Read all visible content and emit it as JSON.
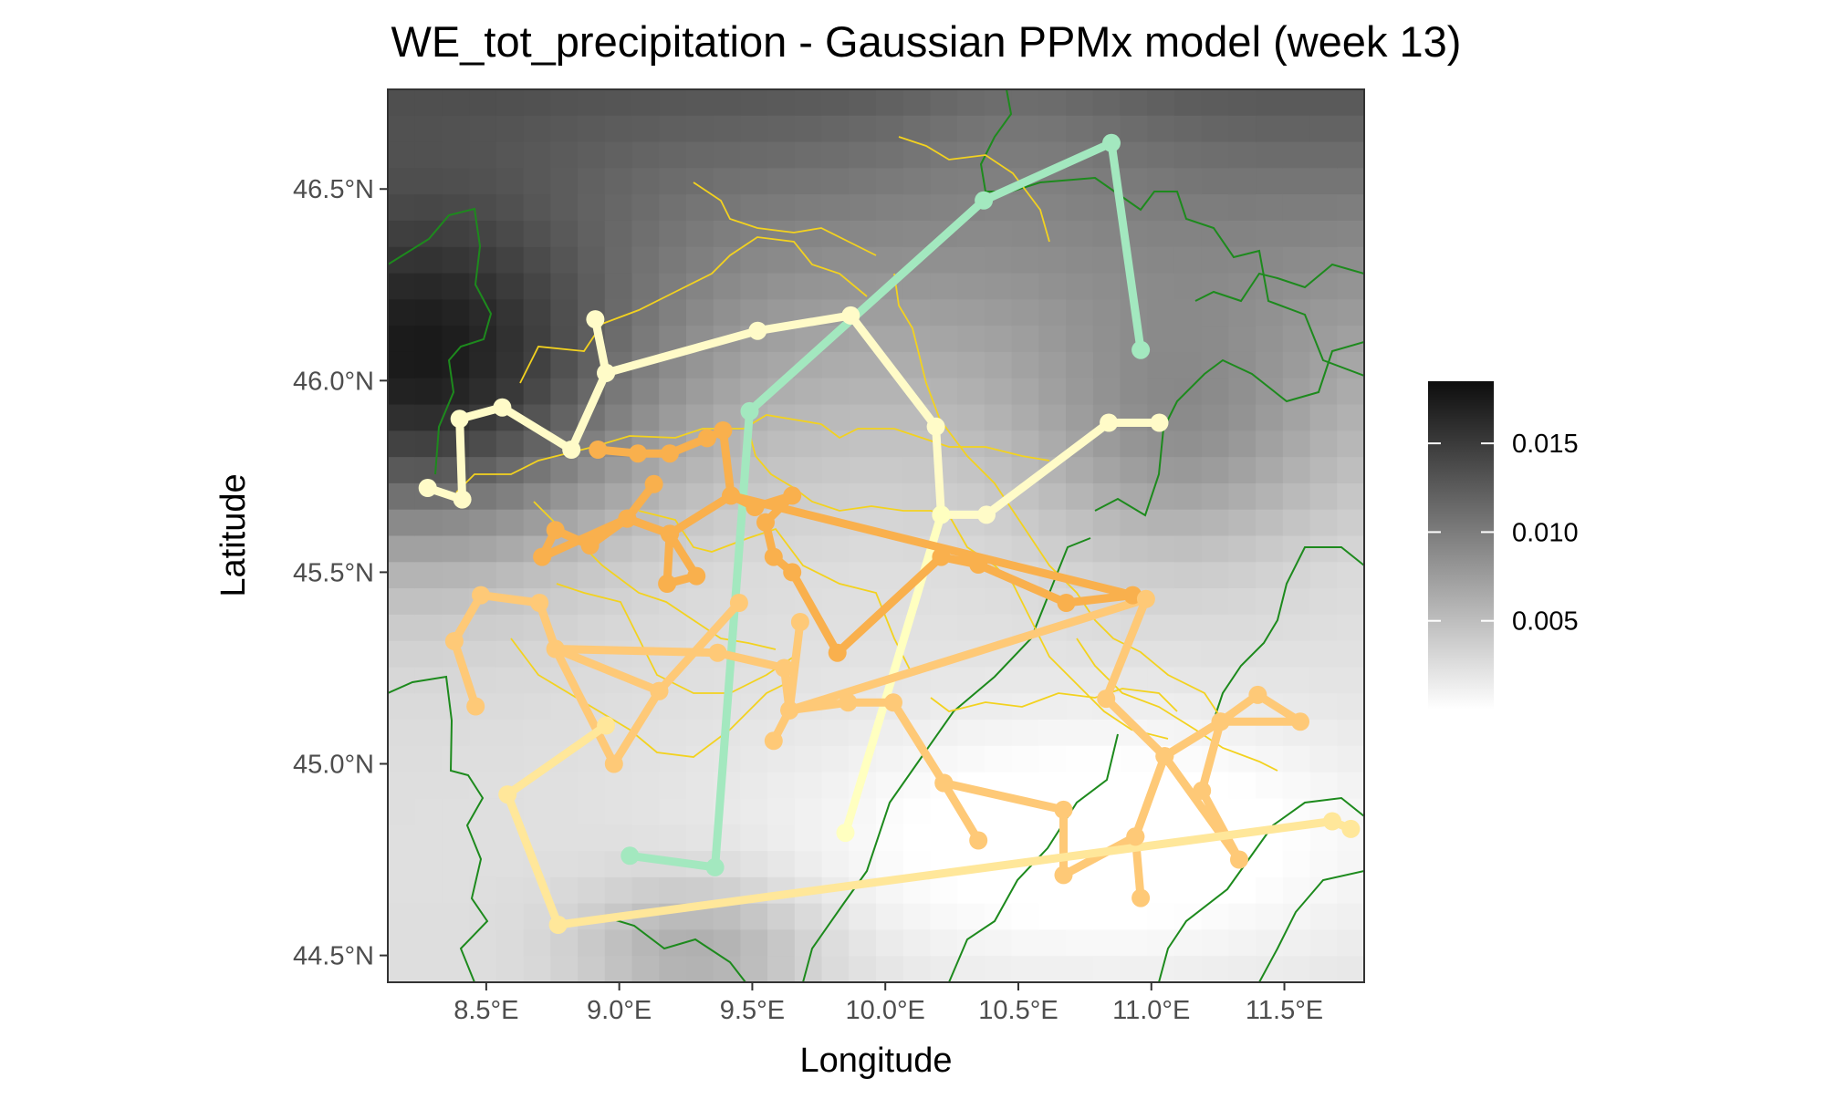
{
  "title": "WE_tot_precipitation - Gaussian PPMx model (week 13)",
  "axes": {
    "x_label": "Longitude",
    "y_label": "Latitude",
    "x_ticks": [
      {
        "value": 8.5,
        "label": "8.5°E"
      },
      {
        "value": 9.0,
        "label": "9.0°E"
      },
      {
        "value": 9.5,
        "label": "9.5°E"
      },
      {
        "value": 10.0,
        "label": "10.0°E"
      },
      {
        "value": 10.5,
        "label": "10.5°E"
      },
      {
        "value": 11.0,
        "label": "11.0°E"
      },
      {
        "value": 11.5,
        "label": "11.5°E"
      }
    ],
    "y_ticks": [
      {
        "value": 44.5,
        "label": "44.5°N"
      },
      {
        "value": 45.0,
        "label": "45.0°N"
      },
      {
        "value": 45.5,
        "label": "45.5°N"
      },
      {
        "value": 46.0,
        "label": "46.0°N"
      },
      {
        "value": 46.5,
        "label": "46.5°N"
      }
    ]
  },
  "legend": {
    "placement": "right",
    "min": 0.0,
    "max": 0.0185,
    "ticks": [
      {
        "value": 0.005,
        "label": "0.005"
      },
      {
        "value": 0.01,
        "label": "0.010"
      },
      {
        "value": 0.015,
        "label": "0.015"
      }
    ]
  },
  "chart_data": {
    "type": "map",
    "xlim": [
      8.13,
      11.8
    ],
    "ylim": [
      44.43,
      46.76
    ],
    "fill_scale": {
      "low": "#ffffff",
      "high": "#0d0d0d"
    },
    "clusters": [
      {
        "color": "#a3e8bf",
        "points": [
          [
            10.96,
            46.08
          ],
          [
            10.85,
            46.62
          ],
          [
            10.37,
            46.47
          ],
          [
            9.49,
            45.92
          ],
          [
            9.36,
            44.73
          ],
          [
            9.04,
            44.76
          ]
        ]
      },
      {
        "color": "#fffbc8",
        "points": [
          [
            8.28,
            45.72
          ],
          [
            8.41,
            45.69
          ],
          [
            8.4,
            45.9
          ],
          [
            8.56,
            45.93
          ],
          [
            8.82,
            45.82
          ],
          [
            8.95,
            46.02
          ],
          [
            8.91,
            46.16
          ],
          [
            8.95,
            46.02
          ],
          [
            9.52,
            46.13
          ],
          [
            9.87,
            46.17
          ],
          [
            10.19,
            45.88
          ],
          [
            10.21,
            45.65
          ],
          [
            10.38,
            45.65
          ],
          [
            10.84,
            45.89
          ],
          [
            11.03,
            45.89
          ]
        ]
      },
      {
        "color": "#ffffc0",
        "points": [
          [
            9.85,
            44.82
          ],
          [
            10.21,
            45.65
          ]
        ]
      },
      {
        "color": "#f9b04d",
        "points": [
          [
            8.92,
            45.82
          ],
          [
            9.07,
            45.81
          ],
          [
            9.19,
            45.81
          ],
          [
            9.33,
            45.85
          ],
          [
            9.39,
            45.87
          ],
          [
            9.42,
            45.7
          ],
          [
            9.51,
            45.67
          ],
          [
            9.65,
            45.7
          ],
          [
            9.55,
            45.63
          ],
          [
            9.58,
            45.54
          ],
          [
            9.65,
            45.5
          ],
          [
            9.82,
            45.29
          ],
          [
            10.21,
            45.54
          ],
          [
            10.35,
            45.52
          ],
          [
            10.68,
            45.42
          ],
          [
            10.93,
            45.44
          ],
          [
            9.42,
            45.7
          ],
          [
            9.19,
            45.6
          ],
          [
            9.18,
            45.47
          ],
          [
            9.29,
            45.49
          ],
          [
            9.19,
            45.6
          ],
          [
            9.03,
            45.64
          ],
          [
            8.89,
            45.57
          ],
          [
            8.76,
            45.61
          ],
          [
            8.71,
            45.54
          ],
          [
            9.03,
            45.64
          ],
          [
            9.13,
            45.73
          ]
        ]
      },
      {
        "color": "#fec977",
        "points": [
          [
            8.46,
            45.15
          ],
          [
            8.38,
            45.32
          ],
          [
            8.48,
            45.44
          ],
          [
            8.7,
            45.42
          ],
          [
            8.76,
            45.3
          ],
          [
            9.15,
            45.19
          ],
          [
            9.45,
            45.42
          ],
          [
            9.15,
            45.19
          ],
          [
            8.98,
            45.0
          ],
          [
            8.76,
            45.3
          ],
          [
            9.37,
            45.29
          ],
          [
            9.62,
            45.25
          ],
          [
            9.64,
            45.14
          ],
          [
            9.58,
            45.06
          ],
          [
            9.64,
            45.14
          ],
          [
            9.86,
            45.16
          ],
          [
            10.03,
            45.16
          ],
          [
            10.22,
            44.95
          ],
          [
            10.35,
            44.8
          ],
          [
            10.22,
            44.95
          ],
          [
            10.67,
            44.88
          ],
          [
            10.67,
            44.71
          ],
          [
            10.94,
            44.81
          ],
          [
            10.96,
            44.65
          ],
          [
            10.94,
            44.81
          ],
          [
            11.05,
            45.02
          ],
          [
            11.26,
            45.11
          ],
          [
            11.4,
            45.18
          ],
          [
            11.56,
            45.11
          ],
          [
            11.26,
            45.11
          ],
          [
            11.19,
            44.93
          ],
          [
            11.33,
            44.75
          ],
          [
            11.05,
            45.02
          ],
          [
            10.83,
            45.17
          ],
          [
            10.98,
            45.43
          ],
          [
            9.64,
            45.14
          ],
          [
            9.68,
            45.37
          ]
        ]
      },
      {
        "color": "#ffe79a",
        "points": [
          [
            8.95,
            45.1
          ],
          [
            8.58,
            44.92
          ],
          [
            8.77,
            44.58
          ],
          [
            11.68,
            44.85
          ],
          [
            11.75,
            44.83
          ]
        ]
      }
    ]
  }
}
